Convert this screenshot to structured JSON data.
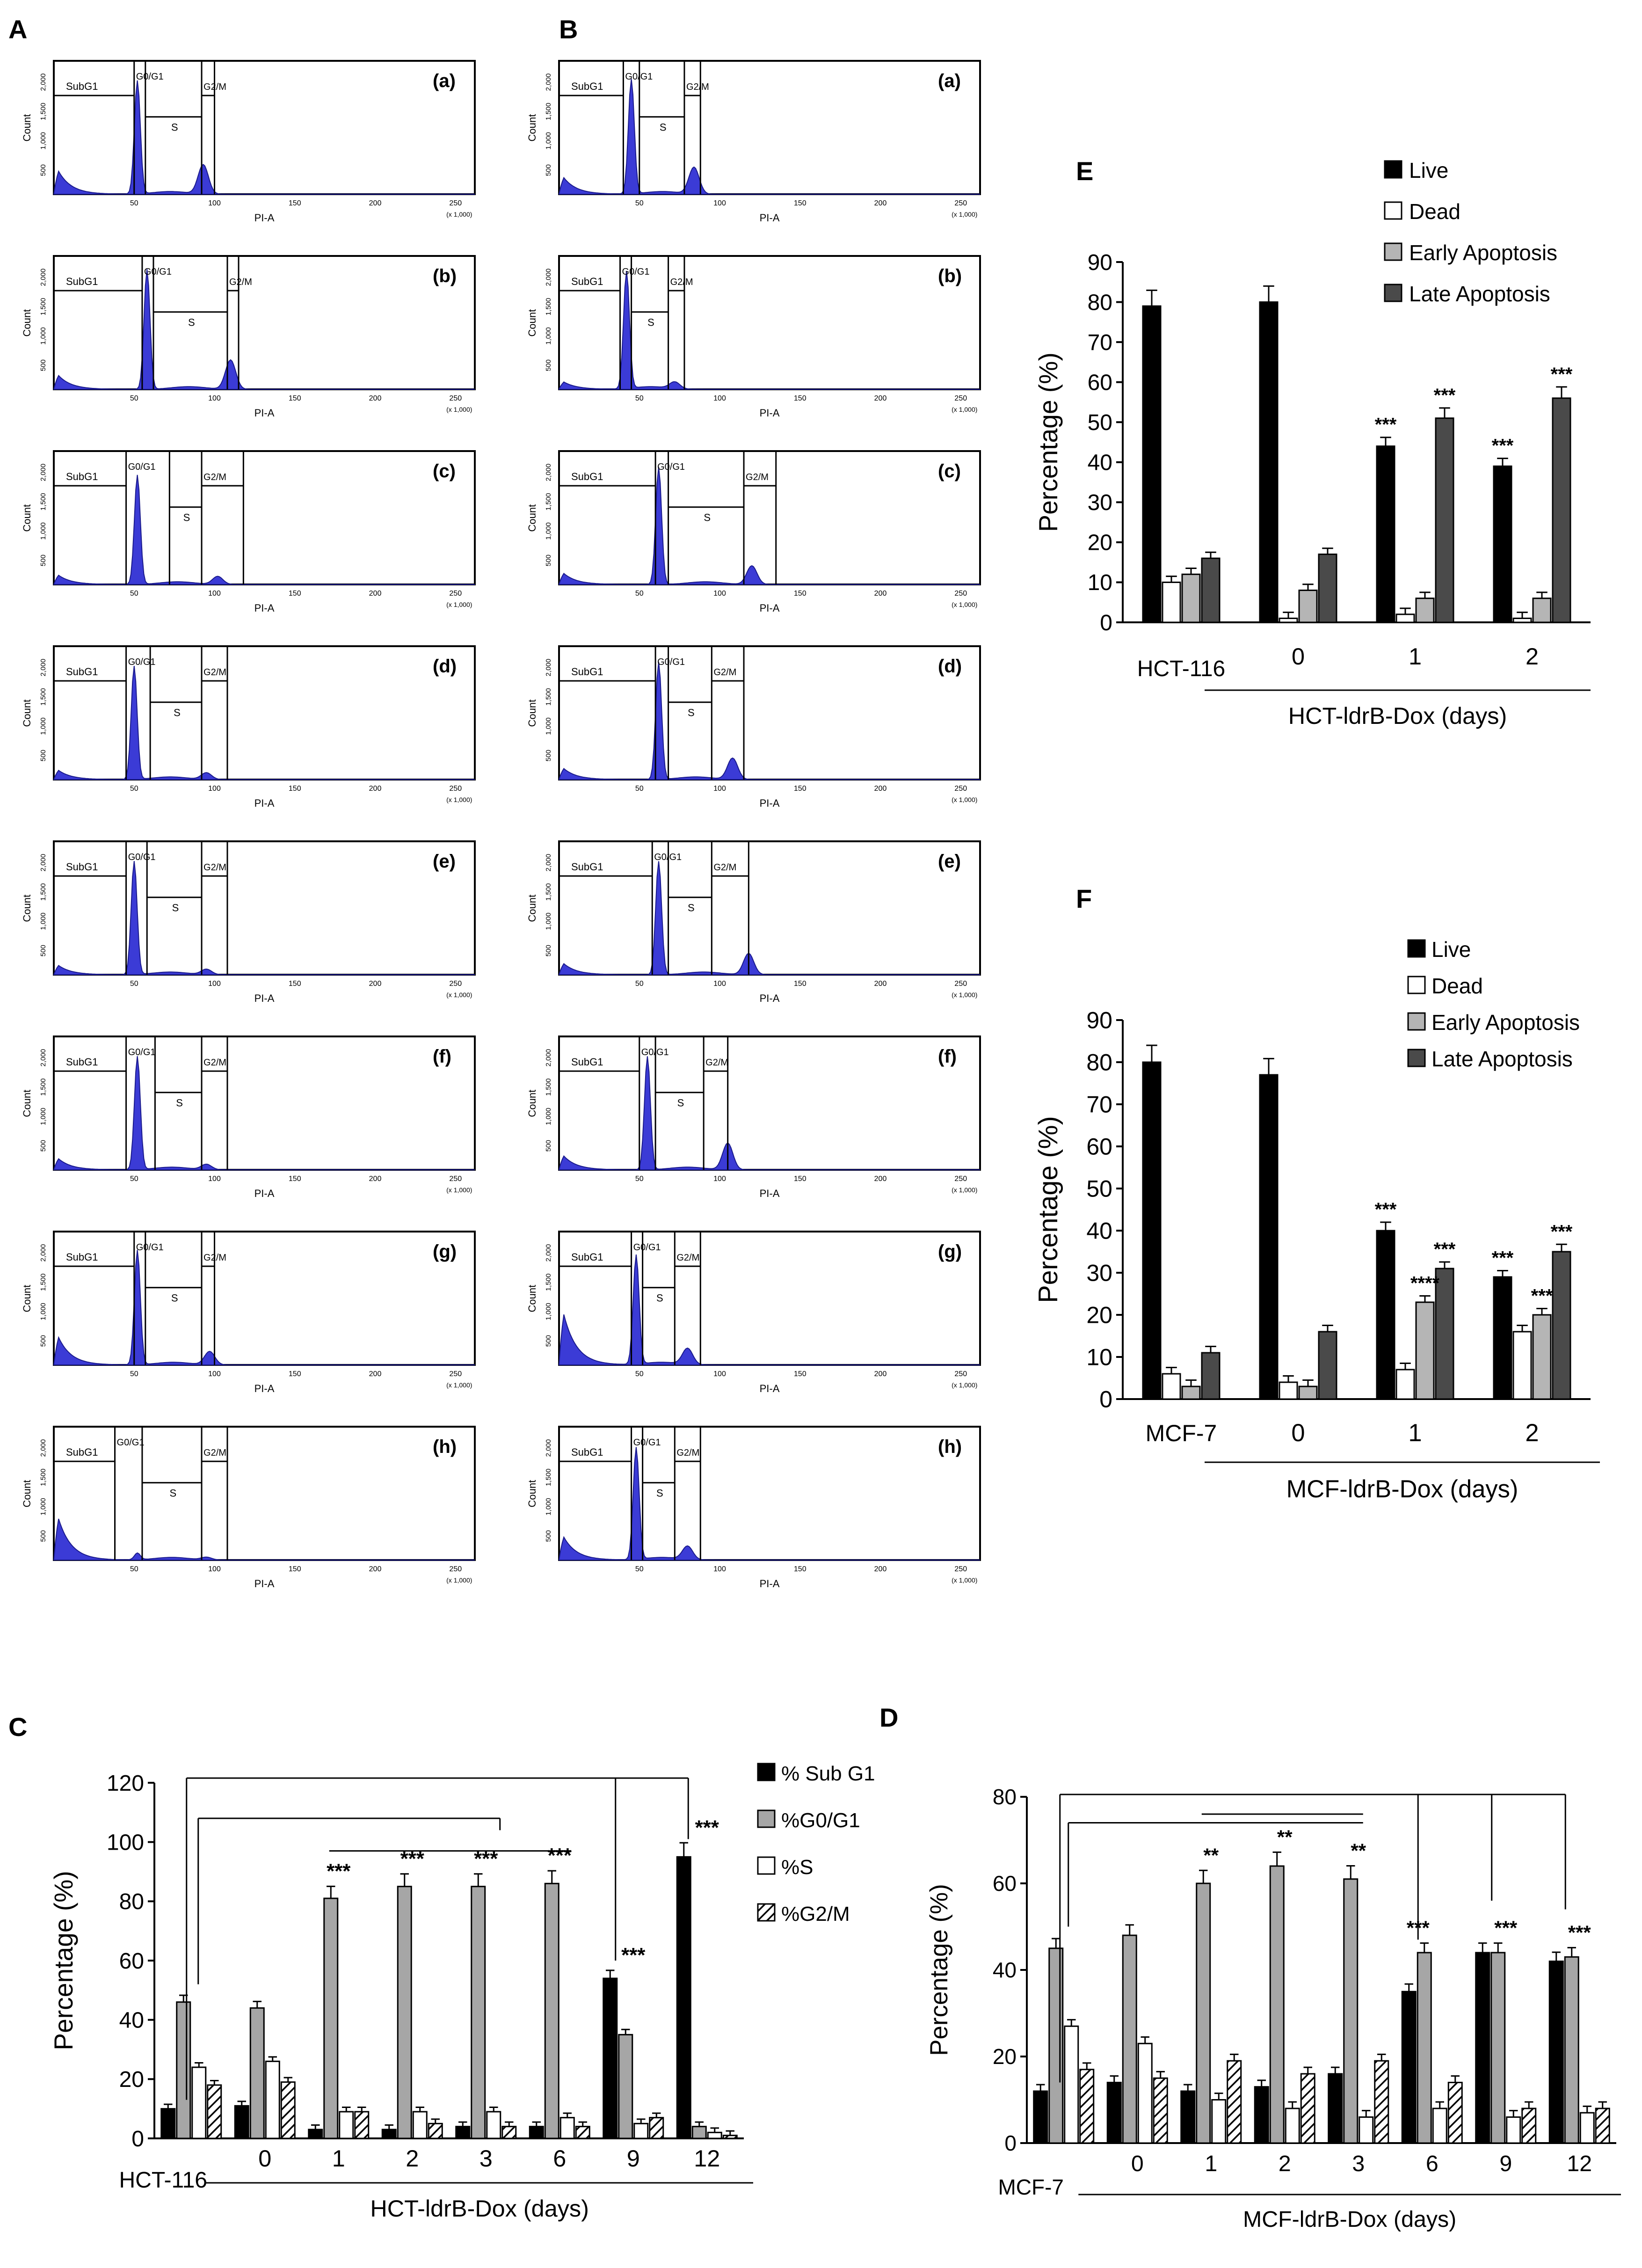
{
  "panel_labels": {
    "A": "A",
    "B": "B",
    "C": "C",
    "D": "D",
    "E": "E",
    "F": "F"
  },
  "flow": {
    "x_label": "PI-A",
    "y_label": "Count",
    "x_scale_note": "(x 1,000)",
    "x_ticks": [
      "50",
      "100",
      "150",
      "200",
      "250"
    ],
    "y_ticks_A": [
      "500",
      "1,000",
      "1,500",
      "2,000"
    ],
    "y_ticks_B": [
      "500",
      "1,000",
      "1,500",
      "2,000"
    ],
    "gate_subg1": "SubG1",
    "gate_g1": "G0/G1",
    "gate_s": "S",
    "gate_g2m": "G2/M",
    "sub_labels": [
      "(a)",
      "(b)",
      "(c)",
      "(d)",
      "(e)",
      "(f)",
      "(g)",
      "(h)"
    ],
    "peak_fill": "#3b3bd6"
  },
  "chart_data": [
    {
      "id": "C",
      "type": "bar",
      "title": "",
      "ylabel": "Percentage (%)",
      "xlabel": "HCT-ldrB-Dox (days)",
      "control_label": "HCT-116",
      "categories": [
        "HCT-116",
        "0",
        "1",
        "2",
        "3",
        "6",
        "9",
        "12"
      ],
      "ylim": [
        0,
        120
      ],
      "yticks": [
        "0",
        "20",
        "40",
        "60",
        "80",
        "100",
        "120"
      ],
      "series": [
        {
          "name": "% Sub G1",
          "values": [
            10,
            11,
            3,
            3,
            4,
            4,
            54,
            95
          ]
        },
        {
          "name": "%G0/G1",
          "values": [
            46,
            44,
            81,
            85,
            85,
            86,
            35,
            4
          ]
        },
        {
          "name": "%S",
          "values": [
            24,
            26,
            9,
            9,
            9,
            7,
            5,
            2
          ]
        },
        {
          "name": "%G2/M",
          "values": [
            18,
            19,
            9,
            5,
            4,
            4,
            7,
            1
          ]
        }
      ],
      "sig_labels": [
        "",
        "",
        "***",
        "***",
        "***",
        "***",
        "***",
        "***"
      ]
    },
    {
      "id": "D",
      "type": "bar",
      "title": "",
      "ylabel": "Percentage (%)",
      "xlabel": "MCF-ldrB-Dox (days)",
      "control_label": "MCF-7",
      "categories": [
        "MCF-7",
        "0",
        "1",
        "2",
        "3",
        "6",
        "9",
        "12"
      ],
      "ylim": [
        0,
        80
      ],
      "yticks": [
        "0",
        "20",
        "40",
        "60",
        "80"
      ],
      "series": [
        {
          "name": "% Sub G1",
          "values": [
            12,
            14,
            12,
            13,
            16,
            35,
            44,
            42
          ]
        },
        {
          "name": "%G0/G1",
          "values": [
            45,
            48,
            60,
            64,
            61,
            44,
            44,
            43
          ]
        },
        {
          "name": "%S",
          "values": [
            27,
            23,
            10,
            8,
            6,
            8,
            6,
            7
          ]
        },
        {
          "name": "%G2/M",
          "values": [
            17,
            15,
            19,
            16,
            19,
            14,
            8,
            8
          ]
        }
      ],
      "sig_labels": [
        "",
        "",
        "**",
        "**",
        "**",
        "***",
        "***",
        "***"
      ]
    },
    {
      "id": "E",
      "type": "bar",
      "title": "",
      "ylabel": "Percentage (%)",
      "xlabel": "HCT-ldrB-Dox (days)",
      "control_label": "HCT-116",
      "categories": [
        "HCT-116",
        "0",
        "1",
        "2"
      ],
      "ylim": [
        0,
        90
      ],
      "yticks": [
        "0",
        "10",
        "20",
        "30",
        "40",
        "50",
        "60",
        "70",
        "80",
        "90"
      ],
      "series": [
        {
          "name": "Live",
          "values": [
            79,
            80,
            44,
            39
          ]
        },
        {
          "name": "Dead",
          "values": [
            10,
            1,
            2,
            1
          ]
        },
        {
          "name": "Early Apoptosis",
          "values": [
            12,
            8,
            6,
            6
          ]
        },
        {
          "name": "Late Apoptosis",
          "values": [
            16,
            17,
            51,
            56
          ]
        }
      ],
      "sig": [
        {
          "category": "1",
          "series": "Live",
          "text": "***"
        },
        {
          "category": "1",
          "series": "Late Apoptosis",
          "text": "***"
        },
        {
          "category": "2",
          "series": "Live",
          "text": "***"
        },
        {
          "category": "2",
          "series": "Late Apoptosis",
          "text": "***"
        }
      ]
    },
    {
      "id": "F",
      "type": "bar",
      "title": "",
      "ylabel": "Percentage (%)",
      "xlabel": "MCF-ldrB-Dox (days)",
      "control_label": "MCF-7",
      "categories": [
        "MCF-7",
        "0",
        "1",
        "2"
      ],
      "ylim": [
        0,
        90
      ],
      "yticks": [
        "0",
        "10",
        "20",
        "30",
        "40",
        "50",
        "60",
        "70",
        "80",
        "90"
      ],
      "series": [
        {
          "name": "Live",
          "values": [
            80,
            77,
            40,
            29
          ]
        },
        {
          "name": "Dead",
          "values": [
            6,
            4,
            7,
            16
          ]
        },
        {
          "name": "Early Apoptosis",
          "values": [
            3,
            3,
            23,
            20
          ]
        },
        {
          "name": "Late Apoptosis",
          "values": [
            11,
            16,
            31,
            35
          ]
        }
      ],
      "sig": [
        {
          "category": "1",
          "series": "Live",
          "text": "***"
        },
        {
          "category": "1",
          "series": "Early Apoptosis",
          "text": "****"
        },
        {
          "category": "1",
          "series": "Late Apoptosis",
          "text": "***"
        },
        {
          "category": "2",
          "series": "Live",
          "text": "***"
        },
        {
          "category": "2",
          "series": "Early Apoptosis",
          "text": "***"
        },
        {
          "category": "2",
          "series": "Late Apoptosis",
          "text": "***"
        }
      ]
    }
  ]
}
